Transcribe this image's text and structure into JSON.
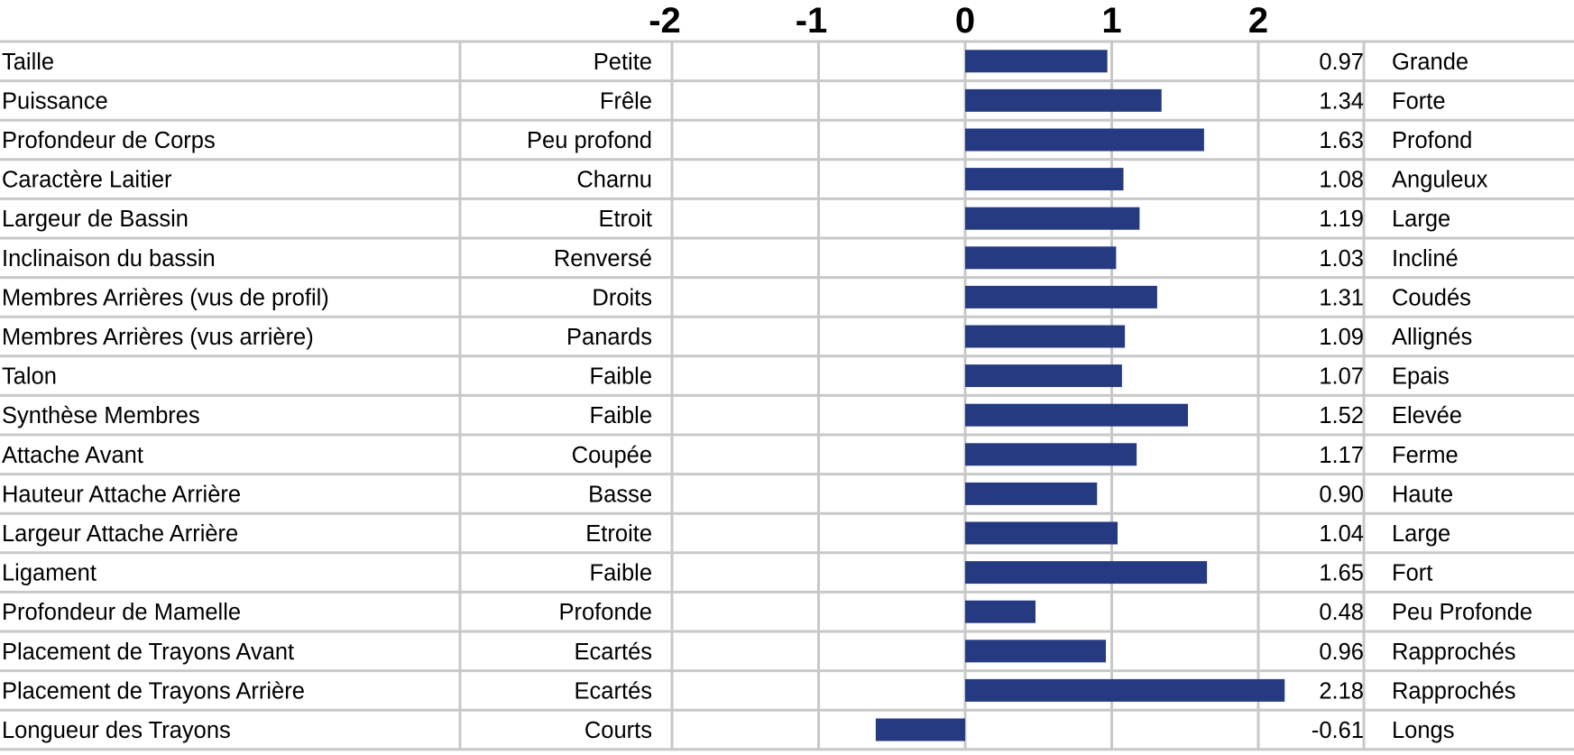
{
  "chart_data": {
    "type": "bar",
    "orientation": "horizontal",
    "title": "",
    "xlabel": "",
    "ylabel": "",
    "xlim": [
      -2,
      2
    ],
    "x_ticks": [
      -2,
      -1,
      0,
      1,
      2
    ],
    "tick_labels": [
      "-2",
      "-1",
      "0",
      "1",
      "2"
    ],
    "grid": true,
    "bar_color": "#263a82",
    "rows": [
      {
        "trait": "Taille",
        "low": "Petite",
        "value": 0.97,
        "value_label": "0.97",
        "high": "Grande"
      },
      {
        "trait": "Puissance",
        "low": "Frêle",
        "value": 1.34,
        "value_label": "1.34",
        "high": "Forte"
      },
      {
        "trait": "Profondeur de Corps",
        "low": "Peu profond",
        "value": 1.63,
        "value_label": "1.63",
        "high": "Profond"
      },
      {
        "trait": "Caractère Laitier",
        "low": "Charnu",
        "value": 1.08,
        "value_label": "1.08",
        "high": "Anguleux"
      },
      {
        "trait": "Largeur de Bassin",
        "low": "Etroit",
        "value": 1.19,
        "value_label": "1.19",
        "high": "Large"
      },
      {
        "trait": "Inclinaison du bassin",
        "low": "Renversé",
        "value": 1.03,
        "value_label": "1.03",
        "high": "Incliné"
      },
      {
        "trait": "Membres Arrières (vus de profil)",
        "low": "Droits",
        "value": 1.31,
        "value_label": "1.31",
        "high": "Coudés"
      },
      {
        "trait": "Membres Arrières (vus arrière)",
        "low": "Panards",
        "value": 1.09,
        "value_label": "1.09",
        "high": "Allignés"
      },
      {
        "trait": "Talon",
        "low": "Faible",
        "value": 1.07,
        "value_label": "1.07",
        "high": "Epais"
      },
      {
        "trait": "Synthèse Membres",
        "low": "Faible",
        "value": 1.52,
        "value_label": "1.52",
        "high": "Elevée"
      },
      {
        "trait": "Attache Avant",
        "low": "Coupée",
        "value": 1.17,
        "value_label": "1.17",
        "high": "Ferme"
      },
      {
        "trait": "Hauteur Attache Arrière",
        "low": "Basse",
        "value": 0.9,
        "value_label": "0.90",
        "high": "Haute"
      },
      {
        "trait": "Largeur Attache Arrière",
        "low": "Etroite",
        "value": 1.04,
        "value_label": "1.04",
        "high": "Large"
      },
      {
        "trait": "Ligament",
        "low": "Faible",
        "value": 1.65,
        "value_label": "1.65",
        "high": "Fort"
      },
      {
        "trait": "Profondeur de Mamelle",
        "low": "Profonde",
        "value": 0.48,
        "value_label": "0.48",
        "high": "Peu Profonde"
      },
      {
        "trait": "Placement de Trayons Avant",
        "low": "Ecartés",
        "value": 0.96,
        "value_label": "0.96",
        "high": "Rapprochés"
      },
      {
        "trait": "Placement de Trayons Arrière",
        "low": "Ecartés",
        "value": 2.18,
        "value_label": "2.18",
        "high": "Rapprochés"
      },
      {
        "trait": "Longueur des Trayons",
        "low": "Courts",
        "value": -0.61,
        "value_label": "-0.61",
        "high": "Longs"
      }
    ]
  }
}
